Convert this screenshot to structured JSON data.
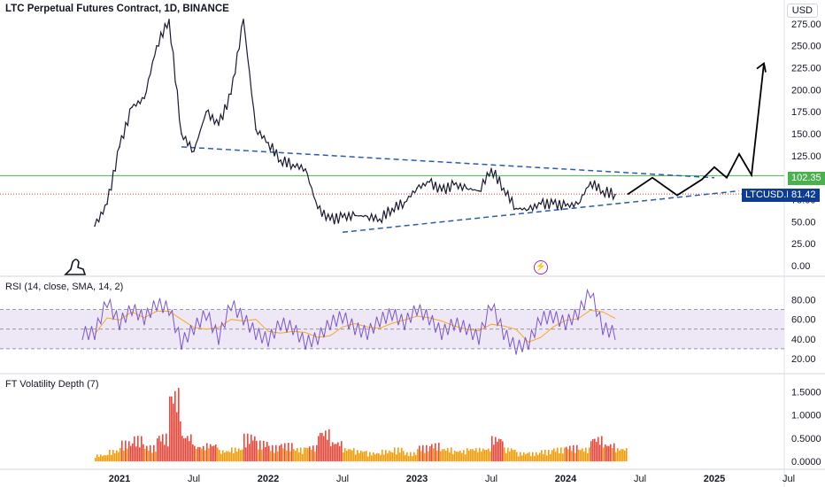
{
  "title": "LTC Perpetual Futures Contract, 1D, BINANCE",
  "currency": "USD",
  "price_badges": {
    "line_level": "102.35",
    "symbol": "LTCUSD.P",
    "last_price": "81.42"
  },
  "colors": {
    "price_line": "#1a1a2e",
    "trendline": "#2a5caa",
    "horizontal_level": "#4caf50",
    "last_price_dotted": "#e53935",
    "rsi_line": "#7e57c2",
    "rsi_sma": "#f9a825",
    "rsi_band": "#ede7f6",
    "vol_red": "#f44336",
    "vol_orange": "#ff9800",
    "symbol_badge": "#0d3c91"
  },
  "time_axis": [
    "2021",
    "Jul",
    "2022",
    "Jul",
    "2023",
    "Jul",
    "2024",
    "Jul",
    "2025",
    "Jul"
  ],
  "chart_data": [
    {
      "type": "line",
      "title": "LTC Perpetual Futures Contract, 1D, BINANCE",
      "ylim": [
        0,
        290
      ],
      "yticks": [
        "275.00",
        "250.00",
        "225.00",
        "200.00",
        "175.00",
        "150.00",
        "125.00",
        "100.00",
        "75.00",
        "50.00",
        "25.00",
        "0.00"
      ],
      "x": [
        "2020-11",
        "2020-12",
        "2021-01",
        "2021-02",
        "2021-03",
        "2021-04",
        "2021-05",
        "2021-06",
        "2021-07",
        "2021-08",
        "2021-09",
        "2021-10",
        "2021-11",
        "2021-12",
        "2022-01",
        "2022-02",
        "2022-03",
        "2022-04",
        "2022-05",
        "2022-06",
        "2022-07",
        "2022-08",
        "2022-09",
        "2022-10",
        "2022-11",
        "2022-12",
        "2023-01",
        "2023-02",
        "2023-03",
        "2023-04",
        "2023-05",
        "2023-06",
        "2023-07",
        "2023-08",
        "2023-09",
        "2023-10",
        "2023-11",
        "2023-12",
        "2024-01",
        "2024-02",
        "2024-03",
        "2024-04",
        "2024-05"
      ],
      "series": [
        {
          "values": [
            45,
            70,
            135,
            180,
            190,
            250,
            280,
            150,
            130,
            175,
            160,
            195,
            280,
            155,
            140,
            120,
            115,
            110,
            65,
            52,
            55,
            57,
            56,
            53,
            65,
            72,
            88,
            95,
            85,
            92,
            88,
            85,
            110,
            88,
            65,
            64,
            70,
            70,
            68,
            70,
            95,
            85,
            81
          ]
        }
      ],
      "projection": {
        "x": [
          "2024-06",
          "2024-08",
          "2024-10",
          "2024-12",
          "2025-01",
          "2025-02",
          "2025-03",
          "2025-04",
          "2025-05"
        ],
        "values": [
          81,
          100,
          80,
          98,
          112,
          100,
          127,
          103,
          230
        ]
      },
      "trendlines": [
        {
          "x": [
            "2021-06",
            "2025-01"
          ],
          "y": [
            135,
            100
          ]
        },
        {
          "x": [
            "2022-07",
            "2025-03"
          ],
          "y": [
            38,
            85
          ]
        }
      ],
      "horizontal_level": 102.35,
      "last_price": 81.42
    },
    {
      "type": "line",
      "title": "RSI (14, close, SMA, 14, 2)",
      "ylim": [
        10,
        95
      ],
      "yticks": [
        "80.00",
        "60.00",
        "40.00",
        "20.00"
      ],
      "bands": [
        30,
        50,
        70
      ],
      "series": [
        {
          "name": "RSI",
          "values": [
            45,
            78,
            55,
            70,
            60,
            75,
            70,
            35,
            50,
            65,
            40,
            75,
            60,
            45,
            38,
            55,
            50,
            35,
            40,
            55,
            62,
            50,
            45,
            58,
            65,
            55,
            70,
            60,
            45,
            55,
            50,
            40,
            75,
            45,
            30,
            35,
            60,
            62,
            55,
            65,
            88,
            50,
            45
          ]
        }
      ]
    },
    {
      "type": "bar",
      "title": "FT Volatility Depth (7)",
      "ylim": [
        0,
        1.7
      ],
      "yticks": [
        "1.5000",
        "1.0000",
        "0.5000",
        "0.0000"
      ],
      "series": [
        {
          "name": "depth",
          "values": [
            0.15,
            0.25,
            0.45,
            0.55,
            0.35,
            0.6,
            1.6,
            0.6,
            0.35,
            0.4,
            0.25,
            0.3,
            0.6,
            0.45,
            0.35,
            0.4,
            0.3,
            0.35,
            0.7,
            0.45,
            0.3,
            0.25,
            0.2,
            0.25,
            0.3,
            0.2,
            0.35,
            0.4,
            0.3,
            0.25,
            0.3,
            0.3,
            0.55,
            0.3,
            0.2,
            0.2,
            0.25,
            0.3,
            0.35,
            0.3,
            0.55,
            0.4,
            0.3
          ]
        }
      ]
    }
  ],
  "rsi_title": "RSI (14, close, SMA, 14, 2)",
  "vol_title": "FT Volatility Depth (7)"
}
